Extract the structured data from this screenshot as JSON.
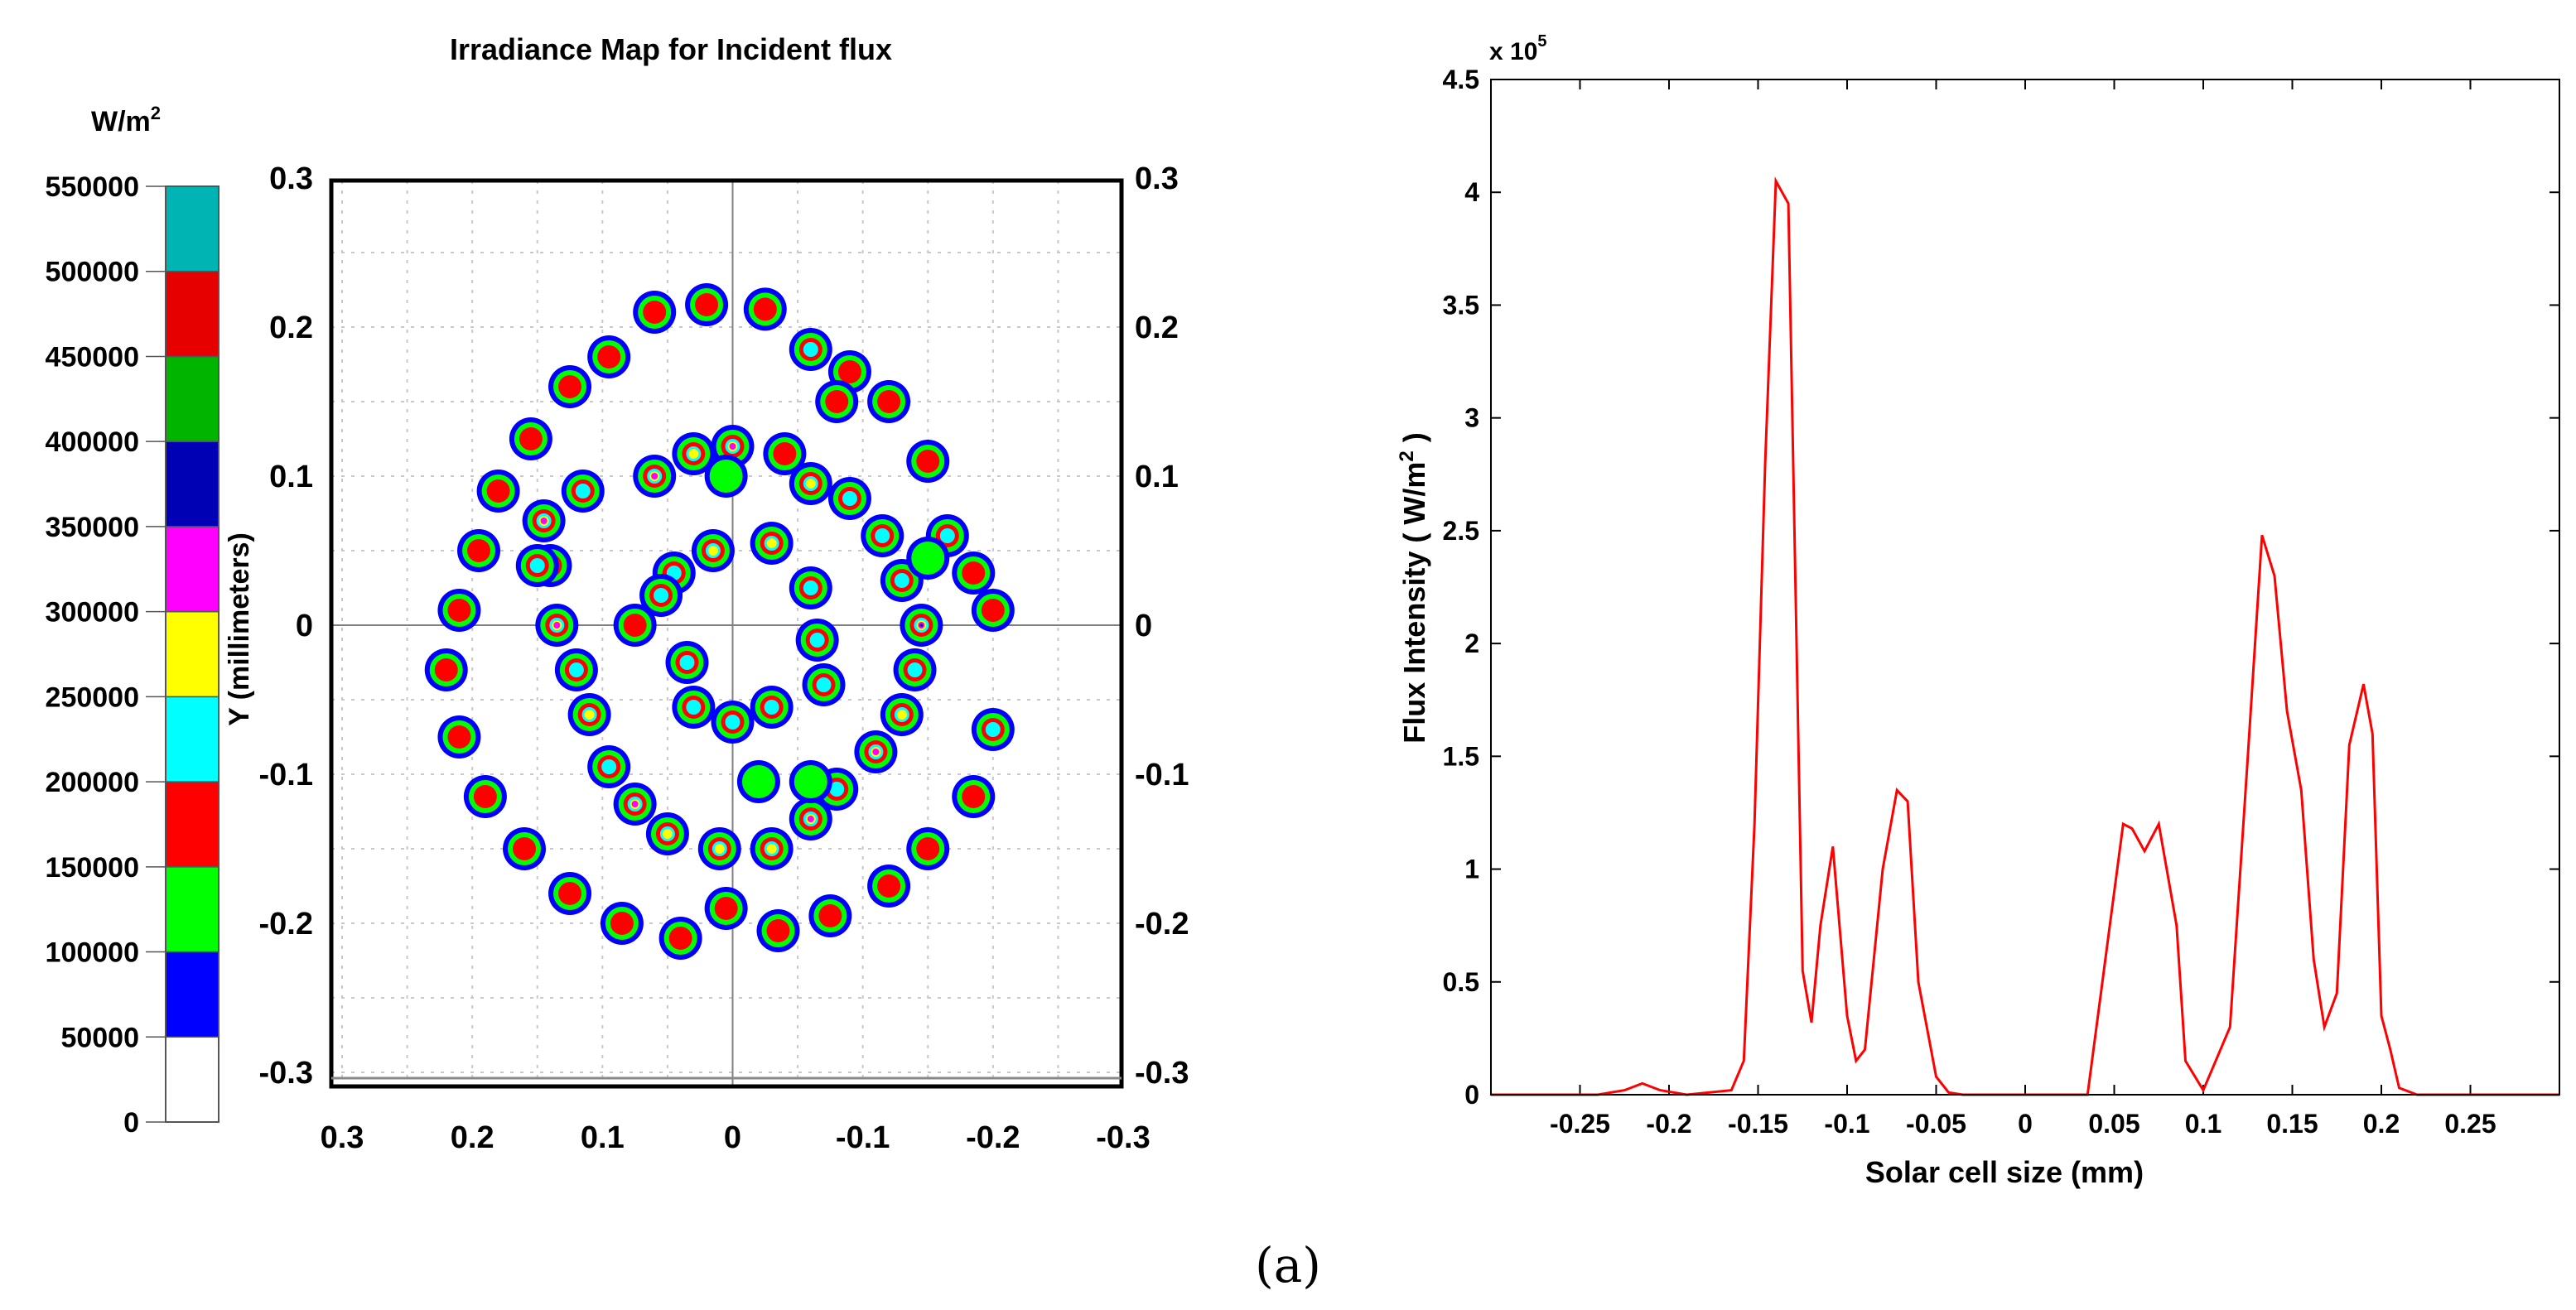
{
  "caption": "(a)",
  "colors": {
    "line": "#ff0000",
    "grid": "#c8c8c8",
    "axis": "#000000",
    "crosshair": "#808080"
  },
  "chart_data": [
    {
      "type": "heatmap",
      "title": "Irradiance Map for Incident flux",
      "colorbar": {
        "unit_label": "W/m",
        "unit_superscript": "2",
        "tick_labels": [
          "550000",
          "500000",
          "450000",
          "400000",
          "350000",
          "300000",
          "250000",
          "200000",
          "150000",
          "100000",
          "50000",
          "0"
        ],
        "colors": [
          "#ffffff",
          "#0000ff",
          "#00ff00",
          "#ff0000",
          "#00ffff",
          "#ffff00",
          "#ff00ff",
          "#0000b4",
          "#00b400",
          "#e60000",
          "#00b4b4"
        ]
      },
      "ylabel": "Y (millimeters)",
      "xlim": [
        0.3,
        -0.3
      ],
      "ylim": [
        -0.3,
        0.3
      ],
      "x_tick_labels": [
        "0.3",
        "0.2",
        "0.1",
        "0",
        "-0.1",
        "-0.2",
        "-0.3"
      ],
      "y_tick_labels_left": [
        "0.3",
        "0.2",
        "0.1",
        "0",
        "-0.1",
        "-0.2",
        "-0.3"
      ],
      "y_tick_labels_right": [
        "0.3",
        "0.2",
        "0.1",
        "0",
        "-0.1",
        "-0.2",
        "-0.3"
      ],
      "spots": [
        {
          "x": 0.06,
          "y": 0.21,
          "level": 2
        },
        {
          "x": 0.02,
          "y": 0.215,
          "level": 2
        },
        {
          "x": -0.025,
          "y": 0.212,
          "level": 2
        },
        {
          "x": 0.095,
          "y": 0.18,
          "level": 2
        },
        {
          "x": -0.06,
          "y": 0.185,
          "level": 3
        },
        {
          "x": 0.125,
          "y": 0.16,
          "level": 2
        },
        {
          "x": -0.09,
          "y": 0.17,
          "level": 2
        },
        {
          "x": 0.155,
          "y": 0.125,
          "level": 2
        },
        {
          "x": -0.12,
          "y": 0.15,
          "level": 2
        },
        {
          "x": 0.18,
          "y": 0.09,
          "level": 2
        },
        {
          "x": -0.15,
          "y": 0.11,
          "level": 2
        },
        {
          "x": 0.195,
          "y": 0.05,
          "level": 2
        },
        {
          "x": -0.165,
          "y": 0.06,
          "level": 3
        },
        {
          "x": 0.21,
          "y": 0.01,
          "level": 2
        },
        {
          "x": -0.185,
          "y": 0.035,
          "level": 2
        },
        {
          "x": 0.22,
          "y": -0.03,
          "level": 2
        },
        {
          "x": -0.2,
          "y": 0.01,
          "level": 2
        },
        {
          "x": 0.21,
          "y": -0.075,
          "level": 2
        },
        {
          "x": -0.2,
          "y": -0.07,
          "level": 3
        },
        {
          "x": 0.19,
          "y": -0.115,
          "level": 2
        },
        {
          "x": -0.185,
          "y": -0.115,
          "level": 2
        },
        {
          "x": 0.16,
          "y": -0.15,
          "level": 2
        },
        {
          "x": -0.15,
          "y": -0.15,
          "level": 2
        },
        {
          "x": 0.125,
          "y": -0.18,
          "level": 2
        },
        {
          "x": -0.12,
          "y": -0.175,
          "level": 2
        },
        {
          "x": 0.085,
          "y": -0.2,
          "level": 2
        },
        {
          "x": -0.075,
          "y": -0.195,
          "level": 2
        },
        {
          "x": 0.04,
          "y": -0.21,
          "level": 2
        },
        {
          "x": -0.035,
          "y": -0.205,
          "level": 2
        },
        {
          "x": 0.005,
          "y": -0.19,
          "level": 2
        },
        {
          "x": 0.06,
          "y": 0.1,
          "level": 5
        },
        {
          "x": 0.03,
          "y": 0.115,
          "level": 4
        },
        {
          "x": 0.0,
          "y": 0.12,
          "level": 5
        },
        {
          "x": -0.04,
          "y": 0.115,
          "level": 2
        },
        {
          "x": -0.06,
          "y": 0.095,
          "level": 4
        },
        {
          "x": -0.09,
          "y": 0.085,
          "level": 3
        },
        {
          "x": -0.115,
          "y": 0.06,
          "level": 3
        },
        {
          "x": -0.13,
          "y": 0.03,
          "level": 3
        },
        {
          "x": -0.145,
          "y": 0.0,
          "level": 6
        },
        {
          "x": -0.14,
          "y": -0.03,
          "level": 3
        },
        {
          "x": -0.13,
          "y": -0.06,
          "level": 4
        },
        {
          "x": -0.11,
          "y": -0.085,
          "level": 5
        },
        {
          "x": -0.08,
          "y": -0.11,
          "level": 3
        },
        {
          "x": -0.06,
          "y": -0.13,
          "level": 5
        },
        {
          "x": -0.03,
          "y": -0.15,
          "level": 4
        },
        {
          "x": 0.01,
          "y": -0.15,
          "level": 4
        },
        {
          "x": 0.05,
          "y": -0.14,
          "level": 4
        },
        {
          "x": 0.075,
          "y": -0.12,
          "level": 5
        },
        {
          "x": 0.095,
          "y": -0.095,
          "level": 3
        },
        {
          "x": 0.11,
          "y": -0.06,
          "level": 4
        },
        {
          "x": 0.12,
          "y": -0.03,
          "level": 3
        },
        {
          "x": 0.135,
          "y": 0.0,
          "level": 5
        },
        {
          "x": 0.14,
          "y": 0.04,
          "level": 3
        },
        {
          "x": 0.145,
          "y": 0.07,
          "level": 5
        },
        {
          "x": 0.115,
          "y": 0.09,
          "level": 3
        },
        {
          "x": 0.15,
          "y": 0.04,
          "level": 3
        },
        {
          "x": 0.015,
          "y": 0.05,
          "level": 4
        },
        {
          "x": -0.03,
          "y": 0.055,
          "level": 4
        },
        {
          "x": 0.045,
          "y": 0.035,
          "level": 3
        },
        {
          "x": 0.055,
          "y": 0.02,
          "level": 3
        },
        {
          "x": -0.06,
          "y": 0.025,
          "level": 3
        },
        {
          "x": 0.075,
          "y": 0.0,
          "level": 2
        },
        {
          "x": -0.065,
          "y": -0.01,
          "level": 3
        },
        {
          "x": 0.035,
          "y": -0.025,
          "level": 3
        },
        {
          "x": -0.07,
          "y": -0.04,
          "level": 3
        },
        {
          "x": 0.03,
          "y": -0.055,
          "level": 3
        },
        {
          "x": 0.0,
          "y": -0.065,
          "level": 3
        },
        {
          "x": -0.03,
          "y": -0.055,
          "level": 3
        },
        {
          "x": 0.005,
          "y": 0.1,
          "level": 1
        },
        {
          "x": -0.02,
          "y": -0.105,
          "level": 1
        },
        {
          "x": -0.06,
          "y": -0.105,
          "level": 1
        },
        {
          "x": -0.15,
          "y": 0.045,
          "level": 1
        },
        {
          "x": -0.08,
          "y": 0.15,
          "level": 2
        }
      ]
    },
    {
      "type": "line",
      "title": "",
      "xlabel": "Solar cell size (mm)",
      "ylabel": "Flux Intensity ( W/m",
      "ylabel_superscript": "2",
      "ylabel_suffix": " )",
      "y_multiplier": "x 10",
      "y_multiplier_exponent": "5",
      "xlim": [
        -0.3,
        0.3
      ],
      "ylim": [
        0,
        4.5
      ],
      "x_tick_labels": [
        "-0.25",
        "-0.2",
        "-0.15",
        "-0.1",
        "-0.05",
        "0",
        "0.05",
        "0.1",
        "0.15",
        "0.2",
        "0.25"
      ],
      "x_tick_values": [
        -0.25,
        -0.2,
        -0.15,
        -0.1,
        -0.05,
        0,
        0.05,
        0.1,
        0.15,
        0.2,
        0.25
      ],
      "y_tick_labels": [
        "0",
        "0.5",
        "1",
        "1.5",
        "2",
        "2.5",
        "3",
        "3.5",
        "4",
        "4.5"
      ],
      "y_tick_values": [
        0,
        0.5,
        1,
        1.5,
        2,
        2.5,
        3,
        3.5,
        4,
        4.5
      ],
      "x": [
        -0.3,
        -0.24,
        -0.225,
        -0.215,
        -0.205,
        -0.19,
        -0.165,
        -0.158,
        -0.152,
        -0.146,
        -0.14,
        -0.133,
        -0.125,
        -0.12,
        -0.115,
        -0.108,
        -0.1,
        -0.095,
        -0.09,
        -0.08,
        -0.072,
        -0.066,
        -0.06,
        -0.05,
        -0.043,
        -0.035,
        0.035,
        0.045,
        0.055,
        0.06,
        0.067,
        0.075,
        0.085,
        0.09,
        0.1,
        0.115,
        0.125,
        0.133,
        0.14,
        0.147,
        0.155,
        0.162,
        0.168,
        0.175,
        0.182,
        0.19,
        0.195,
        0.2,
        0.205,
        0.21,
        0.22,
        0.3
      ],
      "y": [
        0,
        0,
        0.02,
        0.05,
        0.02,
        0,
        0.02,
        0.15,
        1.2,
        2.8,
        4.05,
        3.95,
        0.55,
        0.32,
        0.75,
        1.1,
        0.35,
        0.15,
        0.2,
        1.0,
        1.35,
        1.3,
        0.5,
        0.08,
        0.01,
        0,
        0,
        0.6,
        1.2,
        1.18,
        1.08,
        1.2,
        0.75,
        0.15,
        0.02,
        0.3,
        1.5,
        2.48,
        2.3,
        1.7,
        1.35,
        0.6,
        0.3,
        0.45,
        1.55,
        1.82,
        1.6,
        0.35,
        0.2,
        0.03,
        0,
        0
      ]
    }
  ]
}
